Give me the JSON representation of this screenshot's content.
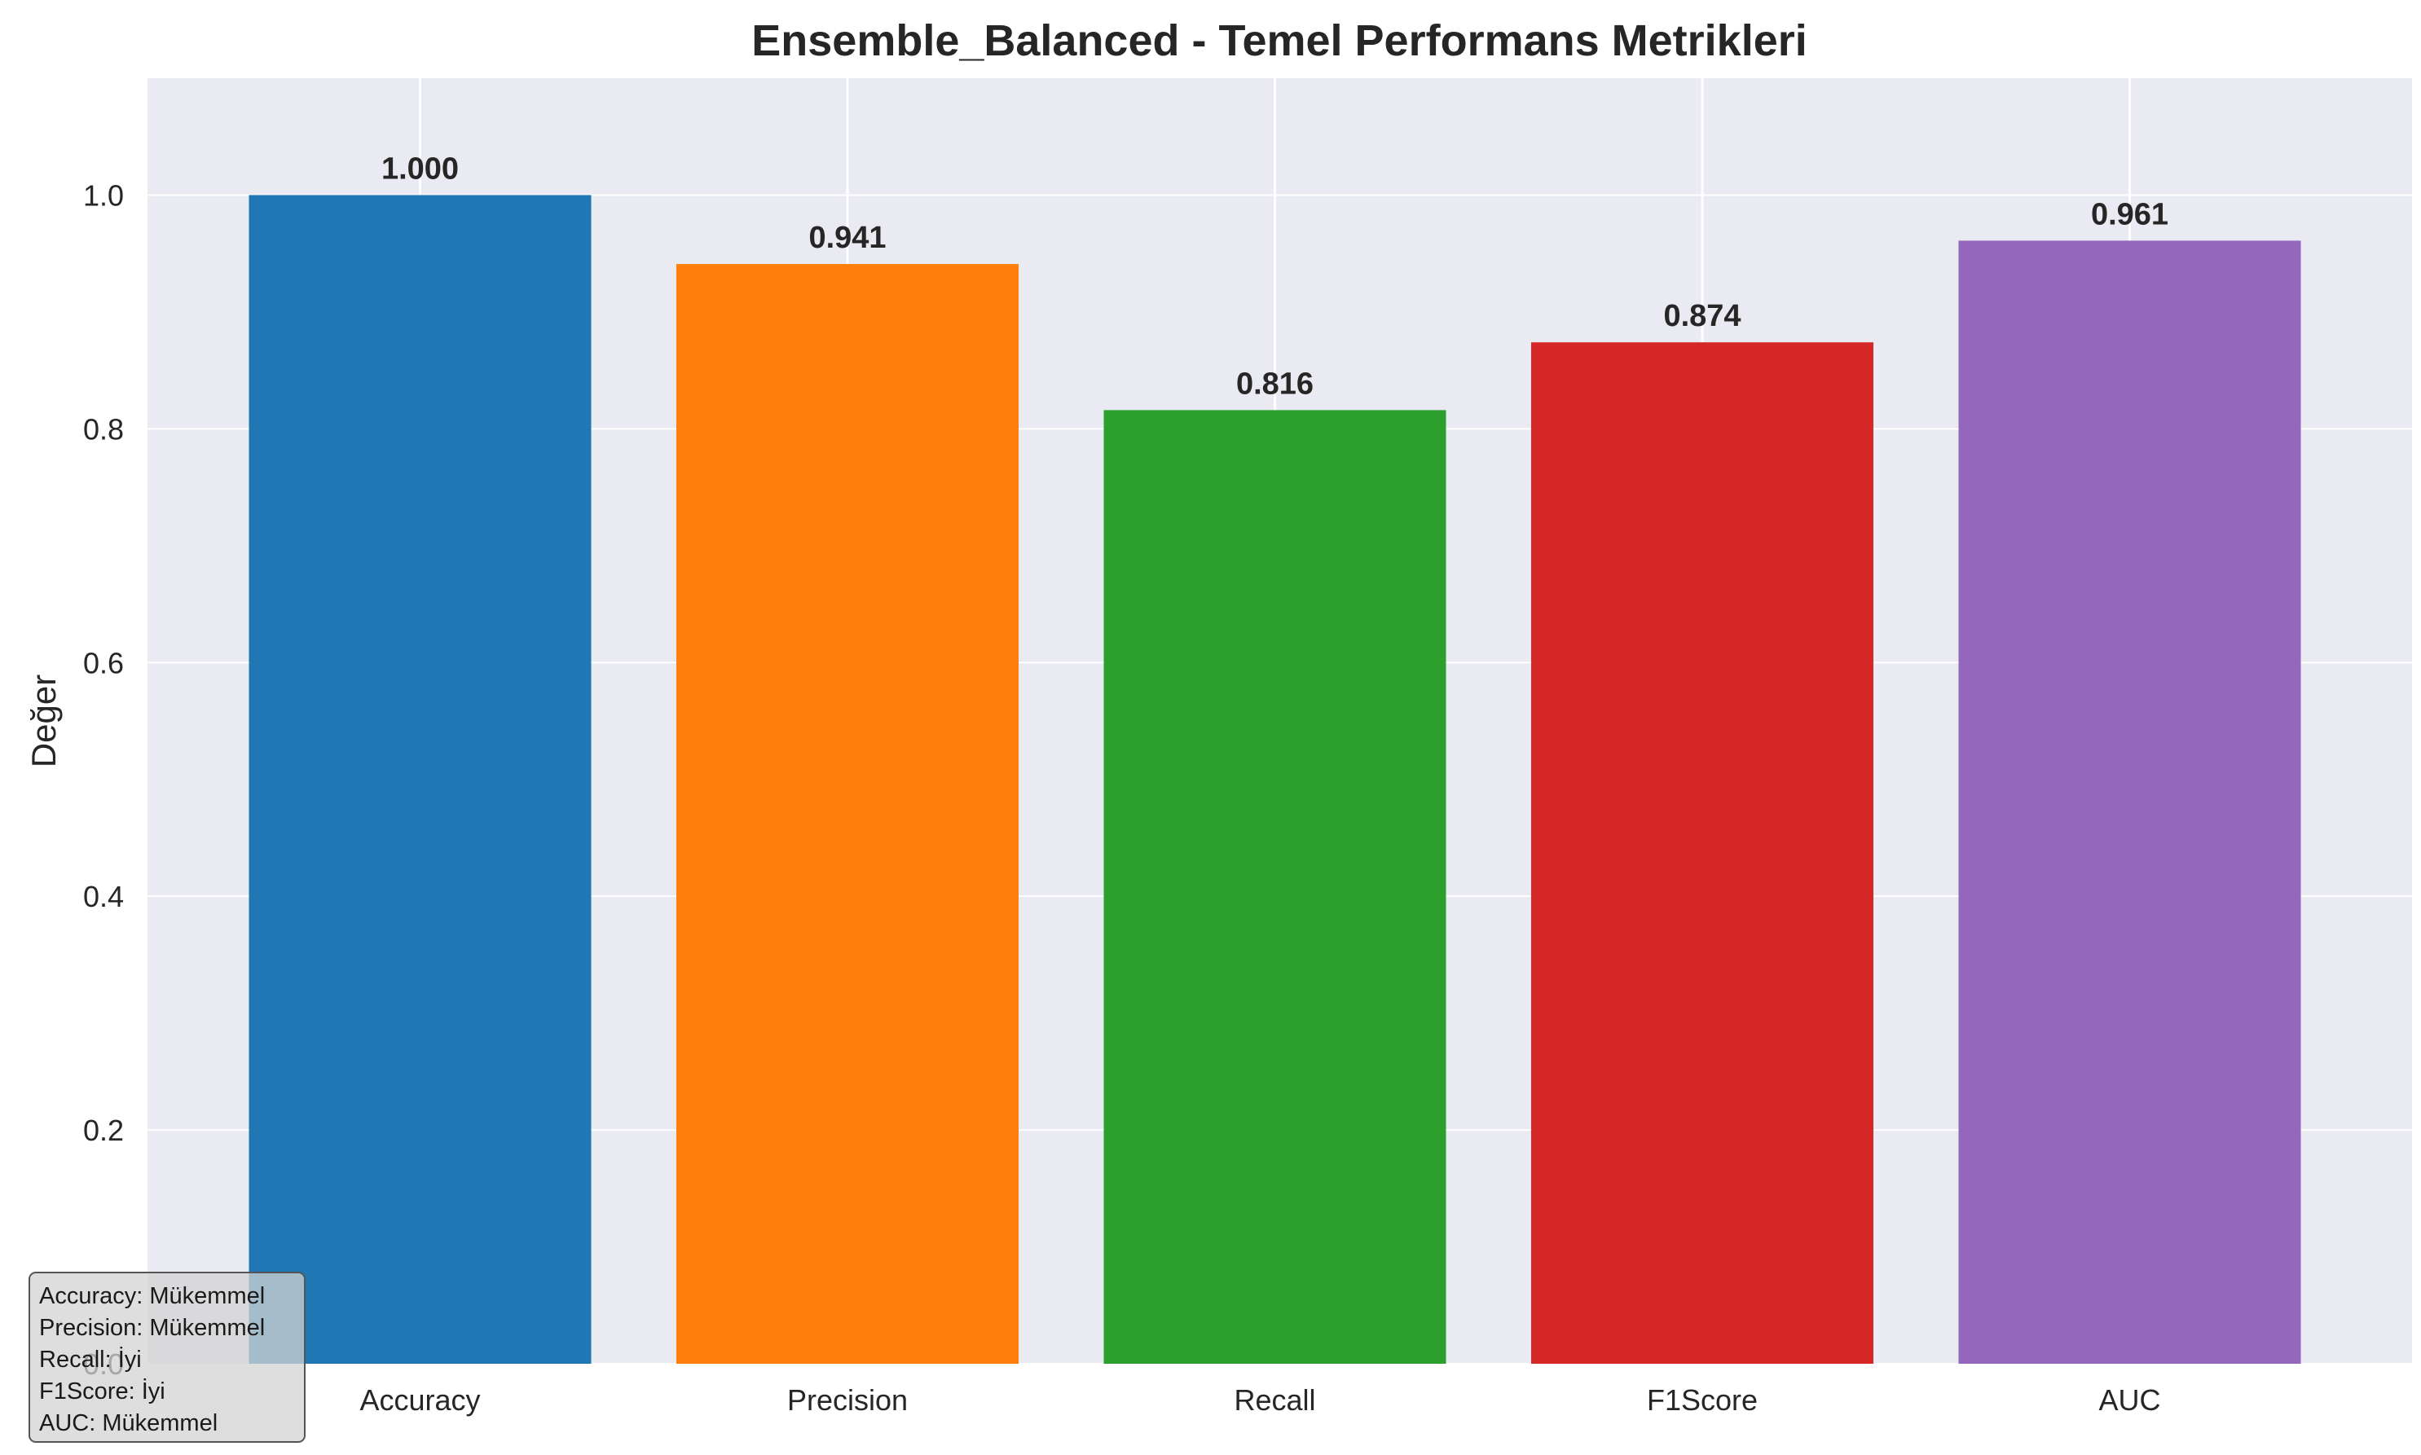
{
  "chart_data": {
    "type": "bar",
    "title": "Ensemble_Balanced - Temel Performans Metrikleri",
    "xlabel": "",
    "ylabel": "Değer",
    "categories": [
      "Accuracy",
      "Precision",
      "Recall",
      "F1Score",
      "AUC"
    ],
    "values": [
      1.0,
      0.941,
      0.816,
      0.874,
      0.961
    ],
    "data_labels": [
      "1.000",
      "0.941",
      "0.816",
      "0.874",
      "0.961"
    ],
    "colors": [
      "#1f77b4",
      "#ff7f0e",
      "#2ca02c",
      "#d62728",
      "#9467bd"
    ],
    "ylim": [
      0,
      1.1
    ],
    "yticks": [
      0.0,
      0.2,
      0.4,
      0.6,
      0.8,
      1.0
    ],
    "ytick_labels": [
      "0.0",
      "0.2",
      "0.4",
      "0.6",
      "0.8",
      "1.0"
    ],
    "grid": true,
    "annotation": {
      "placement": "bottom-left",
      "lines": [
        "Accuracy: Mükemmel",
        "Precision: Mükemmel",
        "Recall: İyi",
        "F1Score: İyi",
        "AUC: Mükemmel"
      ]
    }
  }
}
